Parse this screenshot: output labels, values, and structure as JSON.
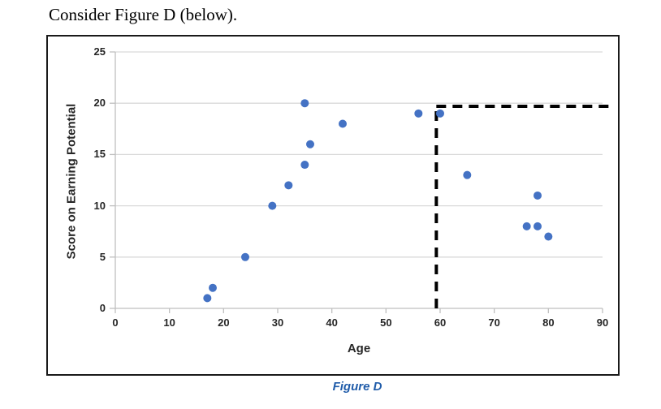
{
  "page": {
    "heading": "Consider Figure D (below).",
    "caption": "Figure D"
  },
  "colors": {
    "caption_blue": "#1F5BA9",
    "chart_border": "#1a1a1a",
    "text": "#262626"
  },
  "chart_data": {
    "type": "scatter",
    "title": "",
    "xlabel": "Age",
    "ylabel": "Score on Earning Potential",
    "xlim": [
      0,
      90
    ],
    "ylim": [
      0,
      25
    ],
    "xticks": [
      0,
      10,
      20,
      30,
      40,
      50,
      60,
      70,
      80,
      90
    ],
    "yticks": [
      0,
      5,
      10,
      15,
      20,
      25
    ],
    "grid": "horizontal",
    "legend": "none",
    "point_color": "#4472C4",
    "point_radius": 5,
    "gridline_color": "#D9D9D9",
    "axis_color": "#BFBFBF",
    "points": [
      [
        17,
        1
      ],
      [
        18,
        2
      ],
      [
        24,
        5
      ],
      [
        29,
        10
      ],
      [
        32,
        12
      ],
      [
        35,
        14
      ],
      [
        36,
        16
      ],
      [
        35,
        20
      ],
      [
        42,
        18
      ],
      [
        56,
        19
      ],
      [
        60,
        19
      ],
      [
        65,
        13
      ],
      [
        76,
        8
      ],
      [
        78,
        8
      ],
      [
        78,
        11
      ],
      [
        80,
        7
      ]
    ],
    "dashed_lines": {
      "color": "#000000",
      "thickness": 4,
      "vertical": {
        "x": 59.3,
        "y_from": 0,
        "y_to": 19.7
      },
      "horizontal": {
        "y": 19.7,
        "x_from": 59.3,
        "x_to": 91.5
      }
    }
  }
}
